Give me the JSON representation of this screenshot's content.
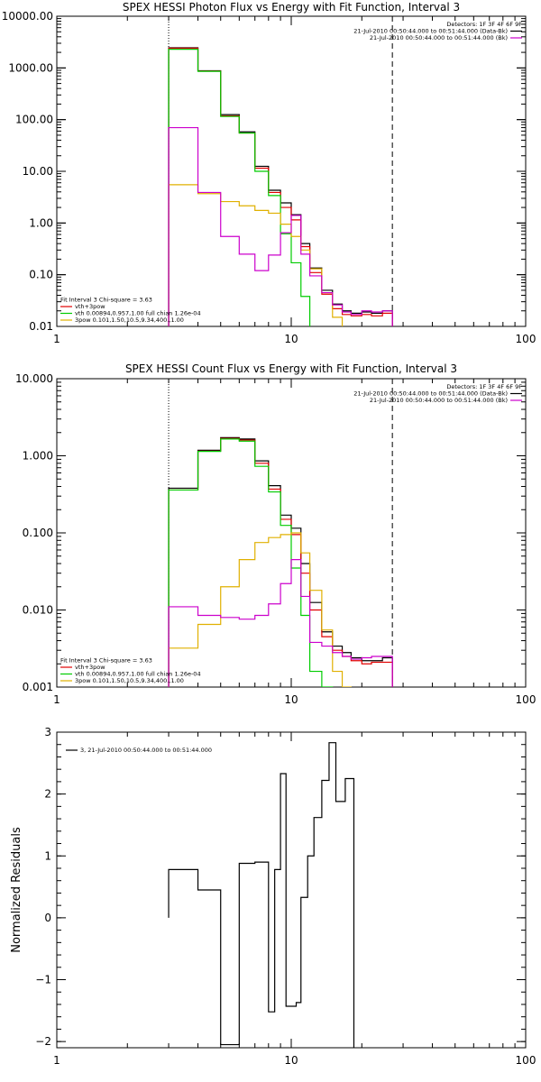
{
  "chart_data": [
    {
      "type": "line",
      "title": "SPEX HESSI Photon Flux vs Energy with Fit Function, Interval 3",
      "x_scale": "log",
      "y_scale": "log",
      "xlim": [
        1,
        100
      ],
      "ylim": [
        0.01,
        10000
      ],
      "x_tick_labels": [
        "1",
        "10",
        "100"
      ],
      "y_tick_labels": [
        "0.01",
        "0.10",
        "1.00",
        "10.00",
        "100.00",
        "1000.00",
        "10000.00"
      ],
      "grid": false,
      "vlines": [
        {
          "x": 3.0,
          "style": "dotted"
        },
        {
          "x": 27.0,
          "style": "dashed"
        }
      ],
      "legend_top_right": {
        "header": "Detectors: 1F 3F 4F 6F 9F",
        "entries": [
          {
            "label": "21-Jul-2010 00:50:44.000 to 00:51:44.000 (Data-Bk)",
            "color": "#000000"
          },
          {
            "label": "21-Jul-2010 00:50:44.000 to 00:51:44.000 (Bk)",
            "color": "#cc00cc"
          }
        ]
      },
      "legend_bottom_left": {
        "header": "Fit Interval 3   Chi-square = 3.63",
        "entries": [
          {
            "label": "vth+3pow",
            "color": "#e00000"
          },
          {
            "label": "vth 0.00894,0.957,1.00   full chian 1.26e-04",
            "color": "#00cc00"
          },
          {
            "label": "3pow 0.101,1.50,10.5,9.34,400.,1.00",
            "color": "#e0b000"
          }
        ]
      },
      "bin_edges": [
        3.0,
        4.0,
        5.0,
        6.0,
        7.0,
        8.0,
        9.0,
        10.0,
        11.0,
        12.0,
        13.5,
        15.0,
        16.5,
        18.0,
        20.0,
        22.0,
        24.5,
        27.0
      ],
      "series": [
        {
          "color": "#000000",
          "values": [
            2450,
            880,
            125,
            58,
            12.5,
            4.3,
            2.45,
            1.45,
            0.4,
            0.135,
            0.05,
            0.027,
            0.02,
            0.018,
            0.019,
            0.018,
            0.02
          ]
        },
        {
          "color": "#e00000",
          "values": [
            2400,
            870,
            118,
            55,
            11.5,
            3.9,
            2.0,
            1.15,
            0.35,
            0.11,
            0.042,
            0.022,
            0.017,
            0.016,
            0.017,
            0.016,
            0.018
          ]
        },
        {
          "color": "#00cc00",
          "values": [
            2300,
            860,
            115,
            55,
            10.0,
            3.4,
            0.62,
            0.17,
            0.038,
            0.0095,
            null,
            null,
            null,
            null,
            null,
            null,
            null
          ]
        },
        {
          "color": "#e0b000",
          "values": [
            5.5,
            3.7,
            2.6,
            2.15,
            1.75,
            1.55,
            0.95,
            0.55,
            0.3,
            0.13,
            0.045,
            0.015,
            0.008,
            null,
            null,
            null,
            null
          ]
        },
        {
          "color": "#cc00cc",
          "values": [
            70,
            3.9,
            0.55,
            0.25,
            0.12,
            0.24,
            0.65,
            1.4,
            0.25,
            0.095,
            0.045,
            0.026,
            0.019,
            0.017,
            0.02,
            0.019,
            0.02
          ]
        }
      ]
    },
    {
      "type": "line",
      "title": "SPEX HESSI Count Flux vs Energy with Fit Function, Interval 3",
      "x_scale": "log",
      "y_scale": "log",
      "xlim": [
        1,
        100
      ],
      "ylim": [
        0.001,
        10
      ],
      "x_tick_labels": [
        "1",
        "10",
        "100"
      ],
      "y_tick_labels": [
        "0.001",
        "0.010",
        "0.100",
        "1.000",
        "10.000"
      ],
      "grid": false,
      "vlines": [
        {
          "x": 3.0,
          "style": "dotted"
        },
        {
          "x": 27.0,
          "style": "dashed"
        }
      ],
      "legend_top_right": {
        "header": "Detectors: 1F 3F 4F 6F 9F",
        "entries": [
          {
            "label": "21-Jul-2010 00:50:44.000 to 00:51:44.000 (Data-Bk)",
            "color": "#000000"
          },
          {
            "label": "21-Jul-2010 00:50:44.000 to 00:51:44.000 (Bk)",
            "color": "#cc00cc"
          }
        ]
      },
      "legend_bottom_left": {
        "header": "Fit Interval 3   Chi-square = 3.63",
        "entries": [
          {
            "label": "vth+3pow",
            "color": "#e00000"
          },
          {
            "label": "vth 0.00894,0.957,1.00   full chian 1.26e-04",
            "color": "#00cc00"
          },
          {
            "label": "3pow 0.101,1.50,10.5,9.34,400.,1.00",
            "color": "#e0b000"
          }
        ]
      },
      "bin_edges": [
        3.0,
        4.0,
        5.0,
        6.0,
        7.0,
        8.0,
        9.0,
        10.0,
        11.0,
        12.0,
        13.5,
        15.0,
        16.5,
        18.0,
        20.0,
        22.0,
        24.5,
        27.0
      ],
      "series": [
        {
          "color": "#000000",
          "values": [
            0.38,
            1.18,
            1.72,
            1.65,
            0.86,
            0.41,
            0.17,
            0.115,
            0.04,
            0.0125,
            0.0052,
            0.0034,
            0.0028,
            0.0024,
            0.0022,
            0.0022,
            0.0024
          ]
        },
        {
          "color": "#e00000",
          "values": [
            0.36,
            1.15,
            1.68,
            1.6,
            0.8,
            0.37,
            0.15,
            0.095,
            0.03,
            0.01,
            0.0045,
            0.003,
            0.0025,
            0.0022,
            0.002,
            0.0021,
            0.0021
          ]
        },
        {
          "color": "#00cc00",
          "values": [
            0.36,
            1.14,
            1.65,
            1.55,
            0.73,
            0.34,
            0.125,
            0.035,
            0.0085,
            0.0016,
            0.001,
            null,
            null,
            null,
            null,
            null,
            null
          ]
        },
        {
          "color": "#e0b000",
          "values": [
            0.0032,
            0.0065,
            0.02,
            0.045,
            0.075,
            0.087,
            0.095,
            0.1,
            0.055,
            0.018,
            0.0055,
            0.0016,
            0.001,
            null,
            null,
            null,
            null
          ]
        },
        {
          "color": "#cc00cc",
          "values": [
            0.011,
            0.0085,
            0.008,
            0.0076,
            0.0085,
            0.012,
            0.022,
            0.045,
            0.015,
            0.0038,
            0.0034,
            0.0028,
            0.0025,
            0.0023,
            0.0024,
            0.0025,
            0.0025
          ]
        }
      ]
    },
    {
      "type": "line",
      "title": "",
      "ylabel": "Normalized Residuals",
      "x_scale": "log",
      "xlim": [
        1,
        100
      ],
      "ylim": [
        -2.1,
        3.0
      ],
      "x_tick_labels": [
        "1",
        "10",
        "100"
      ],
      "y_ticks": [
        -2,
        -1,
        0,
        1,
        2,
        3
      ],
      "y_tick_labels": [
        "−2",
        "−1",
        "0",
        "1",
        "2",
        "3"
      ],
      "grid": false,
      "legend_top_left": {
        "entries": [
          {
            "label": "3, 21-Jul-2010 00:50:44.000 to 00:51:44.000",
            "color": "#000000"
          }
        ]
      },
      "bin_edges": [
        3.0,
        4.0,
        5.0,
        6.0,
        7.0,
        8.0,
        8.5,
        9.0,
        9.5,
        10.5,
        11.0,
        11.75,
        12.5,
        13.5,
        14.5,
        15.5,
        17.0,
        18.5,
        20.0,
        22.0,
        24.5,
        27.0
      ],
      "series": [
        {
          "color": "#000000",
          "values": [
            0.78,
            0.45,
            -2.05,
            0.88,
            0.9,
            -1.52,
            0.78,
            2.33,
            -1.43,
            -1.37,
            0.33,
            1.0,
            1.62,
            2.22,
            2.83,
            1.88,
            2.25,
            null,
            null,
            null,
            null
          ]
        }
      ]
    }
  ]
}
